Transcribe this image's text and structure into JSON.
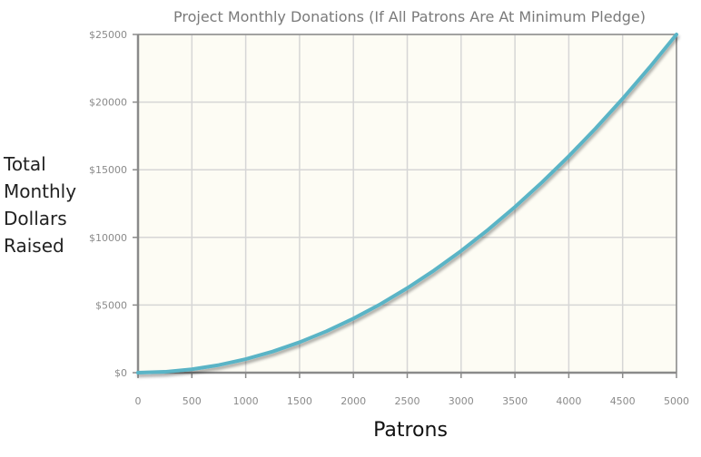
{
  "chart_data": {
    "type": "line",
    "title": "Project Monthly Donations  (If All Patrons Are At Minimum Pledge)",
    "xlabel": "Patrons",
    "ylabel_lines": [
      "Total",
      "Monthly",
      "Dollars",
      "Raised"
    ],
    "xlim": [
      0,
      5000
    ],
    "ylim": [
      0,
      25000
    ],
    "x_ticks": [
      "0",
      "500",
      "1000",
      "1500",
      "2000",
      "2500",
      "3000",
      "3500",
      "4000",
      "4500",
      "5000"
    ],
    "y_ticks": [
      "$0",
      "$5000",
      "$10000",
      "$15000",
      "$20000",
      "$25000"
    ],
    "grid": true,
    "series": [
      {
        "color": "#5ab4c6",
        "x": [
          0,
          250,
          500,
          750,
          1000,
          1250,
          1500,
          1750,
          2000,
          2250,
          2500,
          2750,
          3000,
          3250,
          3500,
          3750,
          4000,
          4250,
          4500,
          4750,
          5000
        ],
        "y": [
          0,
          63,
          250,
          563,
          1000,
          1563,
          2250,
          3063,
          4000,
          5063,
          6250,
          7563,
          9000,
          10563,
          12250,
          14063,
          16000,
          18063,
          20250,
          22563,
          25000
        ]
      }
    ],
    "colors": {
      "plot_background": "#fdfcf4",
      "grid": "#d6d6d6",
      "axis": "#8a8a8a"
    }
  }
}
